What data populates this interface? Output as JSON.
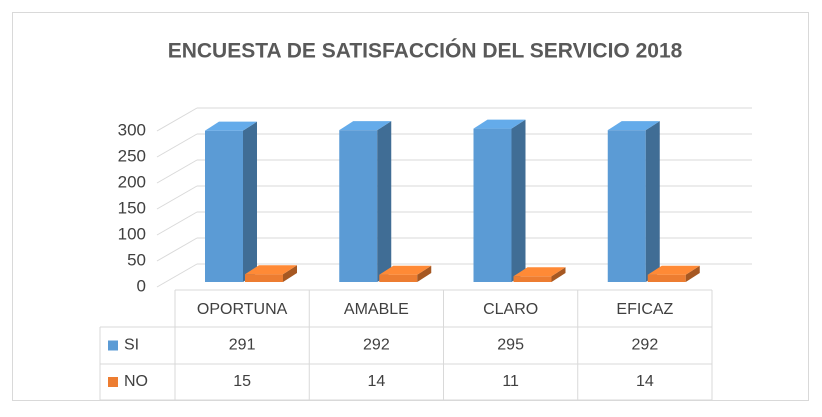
{
  "chart_data": {
    "type": "bar3d",
    "title": "ENCUESTA DE SATISFACCIÓN DEL SERVICIO 2018",
    "categories": [
      "OPORTUNA",
      "AMABLE",
      "CLARO",
      "EFICAZ"
    ],
    "series": [
      {
        "name": "SI",
        "color": "#5b9bd5",
        "values": [
          291,
          292,
          295,
          292
        ]
      },
      {
        "name": "NO",
        "color": "#ed7d31",
        "values": [
          15,
          14,
          11,
          14
        ]
      }
    ],
    "ylim": [
      0,
      300
    ],
    "yticks": [
      0,
      50,
      100,
      150,
      200,
      250,
      300
    ],
    "grid": true,
    "data_table": true
  }
}
